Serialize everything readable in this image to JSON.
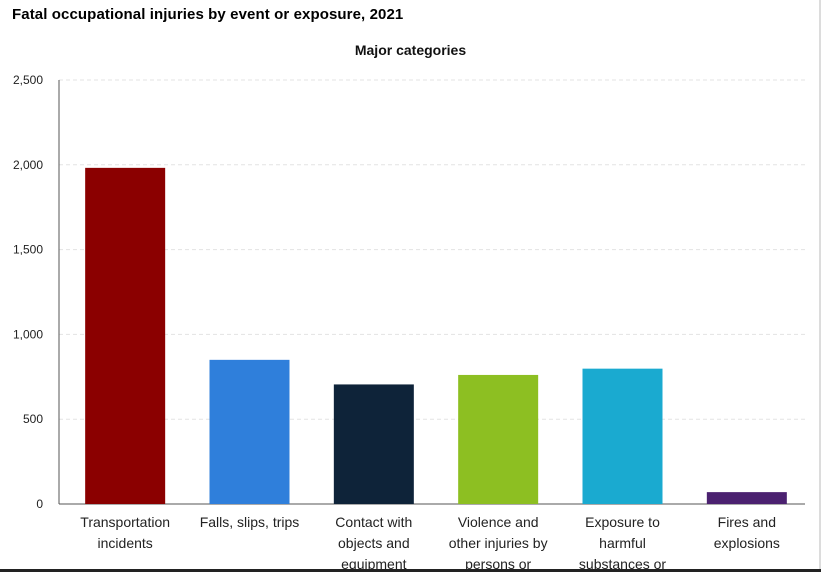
{
  "title": "Fatal occupational injuries by event or exposure, 2021",
  "chart_data": {
    "type": "bar",
    "title": "Fatal occupational injuries by event or exposure, 2021",
    "subtitle": "Major categories",
    "xlabel": "",
    "ylabel": "",
    "ylim": [
      0,
      2500
    ],
    "yticks": [
      "0",
      "500",
      "1,000",
      "1,500",
      "2,000",
      "2,500"
    ],
    "ytick_values": [
      0,
      500,
      1000,
      1500,
      2000,
      2500
    ],
    "grid": true,
    "legend": "none",
    "categories": [
      [
        "Transportation",
        "incidents"
      ],
      [
        "Falls, slips, trips"
      ],
      [
        "Contact with",
        "objects and",
        "equipment"
      ],
      [
        "Violence and",
        "other injuries by",
        "persons or"
      ],
      [
        "Exposure to",
        "harmful",
        "substances or"
      ],
      [
        "Fires and",
        "explosions"
      ]
    ],
    "values": [
      1982,
      850,
      705,
      761,
      798,
      70
    ],
    "colors": [
      "#8b0000",
      "#2f7fdb",
      "#0e2339",
      "#8dbf22",
      "#1aaad0",
      "#4b2170"
    ]
  }
}
